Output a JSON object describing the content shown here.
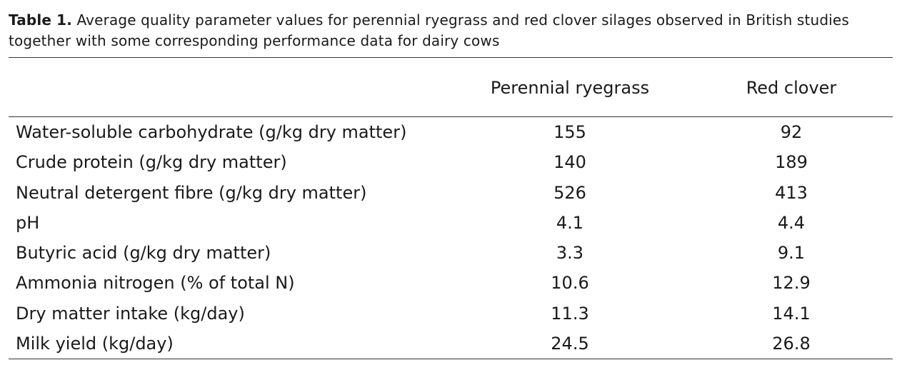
{
  "caption": {
    "label": "Table 1.",
    "text": "Average quality parameter values for perennial ryegrass and red clover silages observed in British studies together with some corresponding performance data for dairy cows"
  },
  "table": {
    "columns": [
      "",
      "Perennial ryegrass",
      "Red clover"
    ],
    "rows": [
      {
        "parameter": "Water-soluble carbohydrate (g/kg dry matter)",
        "ryegrass": "155",
        "clover": "92"
      },
      {
        "parameter": "Crude protein (g/kg dry matter)",
        "ryegrass": "140",
        "clover": "189"
      },
      {
        "parameter": "Neutral detergent fibre (g/kg dry matter)",
        "ryegrass": "526",
        "clover": "413"
      },
      {
        "parameter": "pH",
        "ryegrass": "4.1",
        "clover": "4.4"
      },
      {
        "parameter": "Butyric acid (g/kg dry matter)",
        "ryegrass": "3.3",
        "clover": "9.1"
      },
      {
        "parameter": "Ammonia nitrogen (% of total N)",
        "ryegrass": "10.6",
        "clover": "12.9"
      },
      {
        "parameter": "Dry matter intake (kg/day)",
        "ryegrass": "11.3",
        "clover": "14.1"
      },
      {
        "parameter": "Milk yield (kg/day)",
        "ryegrass": "24.5",
        "clover": "26.8"
      }
    ]
  }
}
